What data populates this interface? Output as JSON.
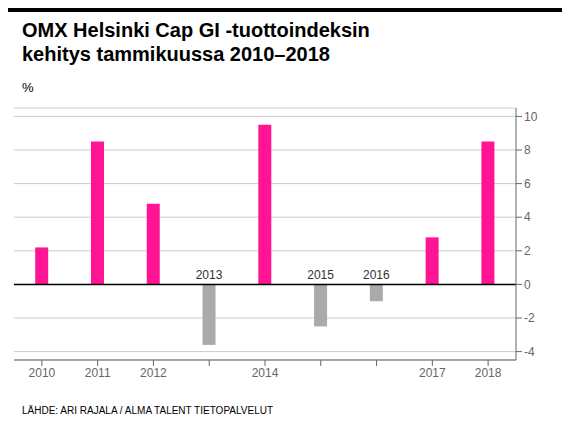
{
  "chart_data": {
    "type": "bar",
    "title": "OMX Helsinki Cap GI -tuottoindeksin\nkehitys tammikuussa 2010–2018",
    "ylabel": "%",
    "source": "LÄHDE: ARI RAJALA / ALMA TALENT TIETOPALVELUT",
    "categories": [
      "2010",
      "2011",
      "2012",
      "2013",
      "2014",
      "2015",
      "2016",
      "2017",
      "2018"
    ],
    "values": [
      2.2,
      8.5,
      4.8,
      -3.6,
      9.5,
      -2.5,
      -1.0,
      2.8,
      8.5
    ],
    "colors": [
      "#FF1493",
      "#FF1493",
      "#FF1493",
      "#AAAAAA",
      "#FF1493",
      "#AAAAAA",
      "#AAAAAA",
      "#FF1493",
      "#FF1493"
    ],
    "ylim": [
      -4.5,
      10.5
    ],
    "yticks": [
      -4,
      -2,
      0,
      2,
      4,
      6,
      8,
      10
    ],
    "grid": true
  }
}
